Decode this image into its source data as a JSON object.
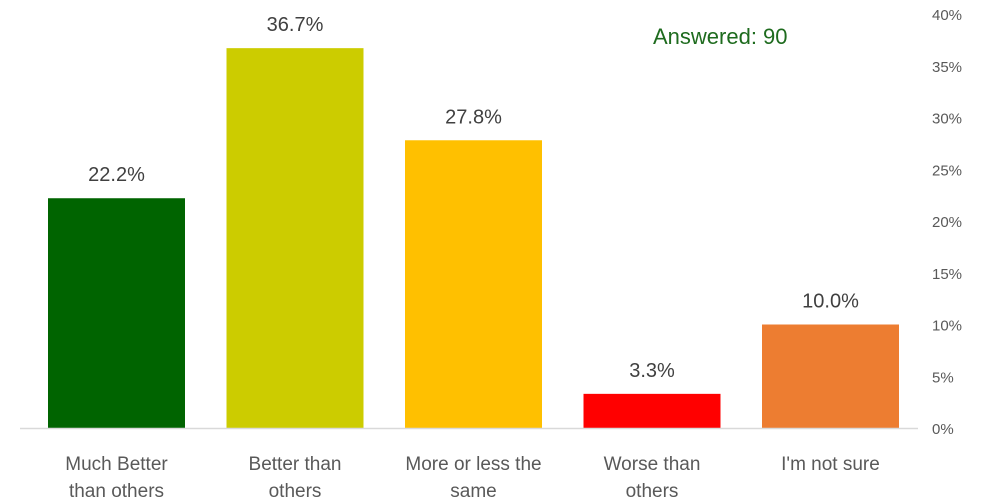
{
  "chart_data": {
    "type": "bar",
    "categories": [
      [
        "Much Better",
        "than others"
      ],
      [
        "Better than",
        "others"
      ],
      [
        "More or less the",
        "same"
      ],
      [
        "Worse than",
        "others"
      ],
      [
        "I'm not sure"
      ]
    ],
    "values": [
      22.2,
      36.7,
      27.8,
      3.3,
      10.0
    ],
    "data_labels": [
      "22.2%",
      "36.7%",
      "27.8%",
      "3.3%",
      "10.0%"
    ],
    "colors": [
      "#006400",
      "#cccc00",
      "#ffc000",
      "#ff0000",
      "#ed7d31"
    ],
    "ylim": [
      0,
      40
    ],
    "y_ticks": [
      "0%",
      "5%",
      "10%",
      "15%",
      "20%",
      "25%",
      "30%",
      "35%",
      "40%"
    ],
    "y_axis_side": "right",
    "grid": false,
    "legend": "none",
    "annotation": "Answered: 90",
    "annotation_color": "#1e6b1e",
    "axis_color": "#d9d9d9"
  }
}
